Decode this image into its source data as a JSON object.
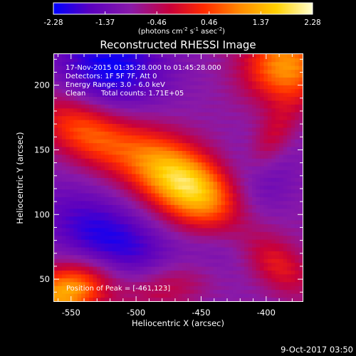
{
  "chart_data": {
    "type": "heatmap",
    "title": "Reconstructed RHESSI Image",
    "xlabel": "Heliocentric X (arcsec)",
    "ylabel": "Heliocentric Y (arcsec)",
    "xlim": [
      -563,
      -372
    ],
    "ylim": [
      33,
      224
    ],
    "x_ticks": [
      -550,
      -500,
      -450,
      -400
    ],
    "y_ticks": [
      50,
      100,
      150,
      200
    ],
    "colorbar": {
      "min": -2.28,
      "max": 2.28,
      "ticks": [
        -2.28,
        -1.37,
        -0.46,
        0.46,
        1.37,
        2.28
      ],
      "tick_labels": [
        "-2.28",
        "-1.37",
        "-0.46",
        "0.46",
        "1.37",
        "2.28"
      ],
      "units_label": "(photons cm",
      "units_label_parts": [
        "(photons cm",
        "-2",
        " s",
        "-1",
        " asec",
        "-2",
        ")"
      ],
      "colormap": [
        "#0000ff",
        "#5a00c0",
        "#8a1aa8",
        "#c8003a",
        "#ff2a00",
        "#ff8a00",
        "#ffd000",
        "#ffffd0"
      ]
    },
    "annotations": {
      "time_range": "17-Nov-2015 01:35:28.000 to 01:45:28.000",
      "detectors": "Detectors: 1F 5F 7F, Att 0",
      "energy": "Energy Range: 3.0 - 6.0 keV",
      "clean_label": "Clean",
      "total_counts": "Total counts: 1.71E+05",
      "peak": "Position of Peak = [-461,123]"
    },
    "peak": {
      "x": -461,
      "y": 123,
      "value": 2.28
    },
    "sources": [
      {
        "x": -461,
        "y": 123,
        "amplitude": 2.9,
        "sigma_major": 38,
        "sigma_minor": 18,
        "angle_deg": -35
      },
      {
        "x": -540,
        "y": 165,
        "amplitude": 1.5,
        "sigma_major": 28,
        "sigma_minor": 16,
        "angle_deg": -30
      },
      {
        "x": -385,
        "y": 215,
        "amplitude": 2.0,
        "sigma_major": 22,
        "sigma_minor": 20,
        "angle_deg": 0
      },
      {
        "x": -555,
        "y": 40,
        "amplitude": 2.2,
        "sigma_major": 24,
        "sigma_minor": 14,
        "angle_deg": 20
      },
      {
        "x": -395,
        "y": 160,
        "amplitude": 0.8,
        "sigma_major": 20,
        "sigma_minor": 10,
        "angle_deg": 60
      },
      {
        "x": -475,
        "y": 45,
        "amplitude": 1.0,
        "sigma_major": 28,
        "sigma_minor": 14,
        "angle_deg": 10
      },
      {
        "x": -390,
        "y": 60,
        "amplitude": 0.9,
        "sigma_major": 20,
        "sigma_minor": 12,
        "angle_deg": -40
      },
      {
        "x": -420,
        "y": 100,
        "amplitude": -0.8,
        "sigma_major": 40,
        "sigma_minor": 20,
        "angle_deg": 60
      },
      {
        "x": -520,
        "y": 215,
        "amplitude": -1.3,
        "sigma_major": 30,
        "sigma_minor": 25,
        "angle_deg": 0
      },
      {
        "x": -520,
        "y": 80,
        "amplitude": -1.2,
        "sigma_major": 40,
        "sigma_minor": 20,
        "angle_deg": -30
      }
    ]
  },
  "footer": {
    "date": "9-Oct-2017 03:50"
  }
}
